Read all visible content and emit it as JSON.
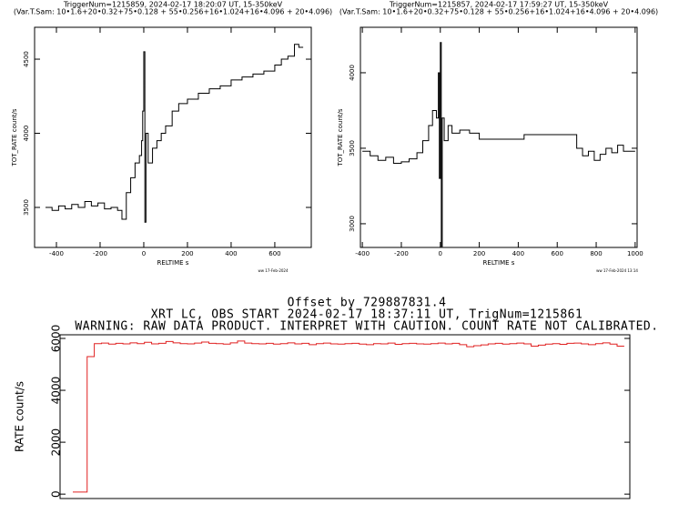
{
  "chart_data": [
    {
      "type": "line",
      "step": true,
      "title_lines": [
        "TriggerNum=1215859, 2024-02-17 18:20:07 UT, 15-350keV",
        "(Var.T.Sam: 10•1.6+20•0.32+75•0.128  +  55•0.256+16•1.024+16•4.096  +  20•4.096)"
      ],
      "xlabel": "RELTIME  s",
      "ylabel": "TOT_RATE  count/s",
      "footer": "ww 17-Feb-2024",
      "xlim": [
        -500,
        767
      ],
      "ylim": [
        3230,
        4715
      ],
      "xticks": [
        -400,
        -200,
        0,
        200,
        400,
        600
      ],
      "yticks": [
        3500,
        4000,
        4500
      ],
      "color": "#000000",
      "x": [
        -450,
        -420,
        -390,
        -360,
        -330,
        -300,
        -270,
        -240,
        -210,
        -180,
        -150,
        -120,
        -100,
        -80,
        -60,
        -40,
        -20,
        -10,
        -5,
        0,
        5,
        10,
        20,
        40,
        60,
        80,
        100,
        130,
        160,
        200,
        250,
        300,
        350,
        400,
        450,
        500,
        550,
        600,
        630,
        660,
        690,
        710
      ],
      "values": [
        3500,
        3480,
        3510,
        3490,
        3520,
        3500,
        3540,
        3510,
        3530,
        3490,
        3500,
        3480,
        3420,
        3600,
        3700,
        3800,
        3850,
        3950,
        4150,
        4550,
        3400,
        4000,
        3800,
        3900,
        3950,
        4000,
        4050,
        4150,
        4200,
        4230,
        4270,
        4300,
        4320,
        4360,
        4380,
        4400,
        4420,
        4460,
        4500,
        4520,
        4600,
        4580
      ]
    },
    {
      "type": "line",
      "step": true,
      "title_lines": [
        "TriggerNum=1215857, 2024-02-17 17:59:27 UT, 15-350keV",
        "(Var.T.Sam: 10•1.6+20•0.32+75•0.128  +  55•0.256+16•1.024+16•4.096  +  20•4.096)"
      ],
      "xlabel": "RELTIME  s",
      "ylabel": "TOT_RATE  count/s",
      "footer": "ww 17-Feb-2024 13:14",
      "xlim": [
        -410,
        1010
      ],
      "ylim": [
        2843,
        4301
      ],
      "xticks": [
        -400,
        -200,
        0,
        200,
        400,
        600,
        800,
        1000
      ],
      "yticks": [
        3000,
        3500,
        4000
      ],
      "color": "#000000",
      "x": [
        -400,
        -360,
        -320,
        -280,
        -240,
        -200,
        -160,
        -120,
        -90,
        -60,
        -40,
        -20,
        -10,
        -5,
        0,
        5,
        10,
        20,
        40,
        60,
        100,
        150,
        200,
        430,
        700,
        730,
        760,
        790,
        820,
        850,
        880,
        910,
        940,
        970
      ],
      "values": [
        3480,
        3450,
        3420,
        3440,
        3400,
        3410,
        3430,
        3470,
        3550,
        3650,
        3750,
        3700,
        4000,
        3300,
        4200,
        2850,
        3700,
        3550,
        3650,
        3600,
        3620,
        3600,
        3560,
        3590,
        3500,
        3450,
        3480,
        3420,
        3460,
        3500,
        3470,
        3520,
        3480,
        3480
      ]
    },
    {
      "type": "line",
      "step": true,
      "title_lines": [
        "Offset by 729887831.4",
        "XRT LC, OBS START 2024-02-17 18:37:11 UT, TrigNum=1215861",
        "WARNING: RAW DATA PRODUCT. INTERPRET WITH CAUTION. COUNT RATE NOT CALIBRATED."
      ],
      "ylabel": "RATE  count/s",
      "ylim": [
        -170,
        6140
      ],
      "yticks": [
        0,
        2000,
        4000,
        6000
      ],
      "color": "#e02020",
      "values": [
        80,
        80,
        5300,
        5800,
        5820,
        5780,
        5810,
        5790,
        5830,
        5800,
        5850,
        5790,
        5810,
        5880,
        5830,
        5800,
        5790,
        5820,
        5860,
        5810,
        5800,
        5780,
        5830,
        5900,
        5820,
        5800,
        5790,
        5810,
        5780,
        5800,
        5830,
        5790,
        5810,
        5760,
        5800,
        5820,
        5790,
        5780,
        5800,
        5810,
        5780,
        5760,
        5800,
        5790,
        5820,
        5770,
        5800,
        5810,
        5790,
        5780,
        5800,
        5820,
        5790,
        5810,
        5760,
        5680,
        5720,
        5750,
        5790,
        5810,
        5780,
        5800,
        5820,
        5790,
        5700,
        5740,
        5780,
        5800,
        5770,
        5810,
        5820,
        5790,
        5760,
        5800,
        5830,
        5780,
        5700
      ]
    }
  ]
}
